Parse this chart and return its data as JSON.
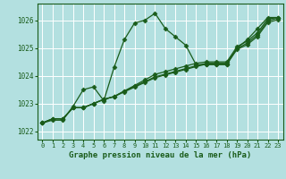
{
  "title": "Graphe pression niveau de la mer (hPa)",
  "background_color": "#b3e0e0",
  "grid_color": "#ffffff",
  "line_color": "#1a5c1a",
  "xlim": [
    -0.5,
    23.5
  ],
  "ylim": [
    1021.7,
    1026.6
  ],
  "yticks": [
    1022,
    1023,
    1024,
    1025,
    1026
  ],
  "xticks": [
    0,
    1,
    2,
    3,
    4,
    5,
    6,
    7,
    8,
    9,
    10,
    11,
    12,
    13,
    14,
    15,
    16,
    17,
    18,
    19,
    20,
    21,
    22,
    23
  ],
  "series": [
    [
      1022.3,
      1022.4,
      1022.4,
      1022.9,
      1023.5,
      1023.6,
      1023.1,
      1024.3,
      1025.3,
      1025.9,
      1026.0,
      1026.25,
      1025.7,
      1025.4,
      1025.1,
      1024.4,
      1024.4,
      1024.4,
      1024.4,
      1025.0,
      1025.3,
      1025.7,
      1026.1,
      1026.1
    ],
    [
      1022.3,
      1022.45,
      1022.45,
      1022.85,
      1022.85,
      1023.0,
      1023.15,
      1023.25,
      1023.45,
      1023.65,
      1023.85,
      1024.05,
      1024.15,
      1024.25,
      1024.35,
      1024.45,
      1024.5,
      1024.5,
      1024.5,
      1025.05,
      1025.25,
      1025.55,
      1026.05,
      1026.1
    ],
    [
      1022.3,
      1022.45,
      1022.45,
      1022.85,
      1022.85,
      1023.0,
      1023.15,
      1023.25,
      1023.45,
      1023.62,
      1023.79,
      1023.96,
      1024.06,
      1024.16,
      1024.26,
      1024.36,
      1024.45,
      1024.45,
      1024.45,
      1024.98,
      1025.18,
      1025.48,
      1025.98,
      1026.08
    ],
    [
      1022.3,
      1022.45,
      1022.45,
      1022.85,
      1022.85,
      1023.0,
      1023.15,
      1023.25,
      1023.42,
      1023.59,
      1023.76,
      1023.93,
      1024.03,
      1024.13,
      1024.23,
      1024.33,
      1024.42,
      1024.42,
      1024.42,
      1024.95,
      1025.12,
      1025.42,
      1025.92,
      1026.02
    ]
  ],
  "marker": "D",
  "markersize": 2.5,
  "linewidth": 0.9,
  "tick_fontsize": 5,
  "xlabel_fontsize": 6.5
}
